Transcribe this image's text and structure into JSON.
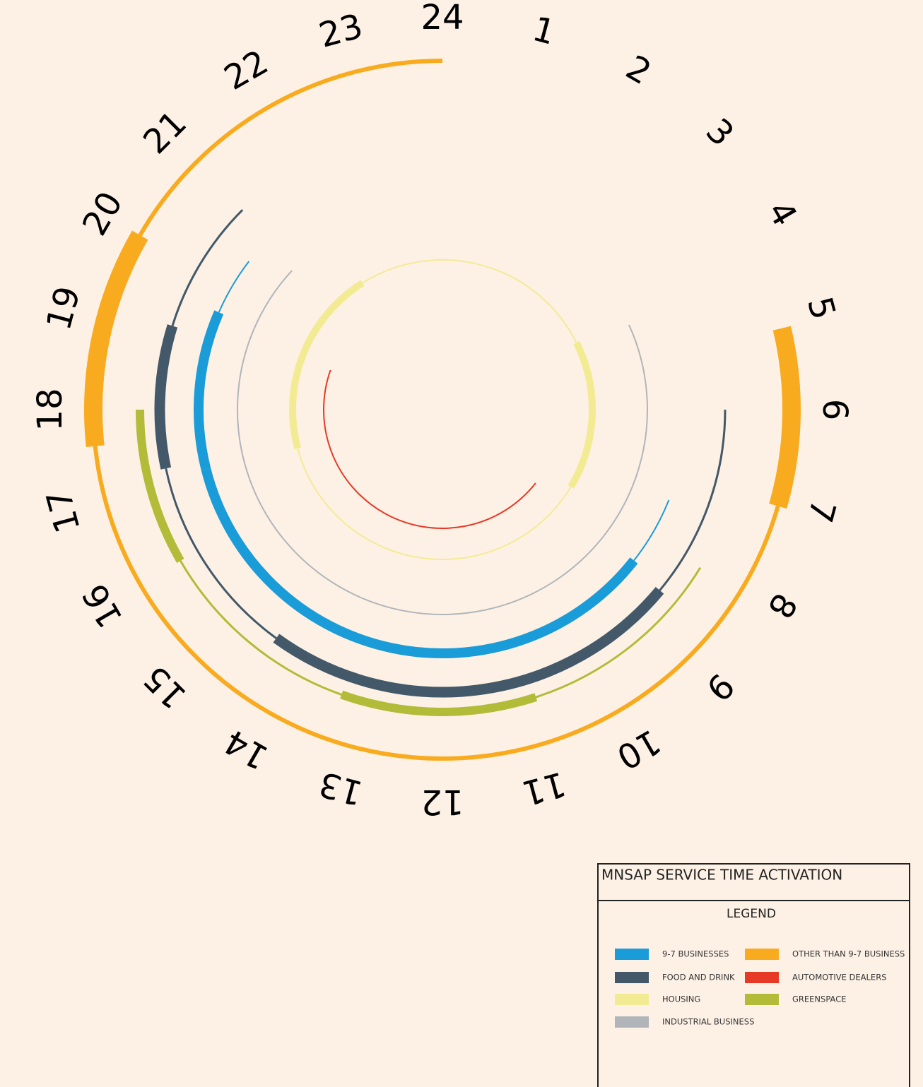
{
  "hours": [
    "1",
    "2",
    "3",
    "4",
    "5",
    "6",
    "7",
    "8",
    "9",
    "10",
    "11",
    "12",
    "13",
    "14",
    "15",
    "16",
    "17",
    "18",
    "19",
    "20",
    "21",
    "22",
    "23",
    "24"
  ],
  "legend": {
    "title": "MNSAP SERVICE TIME ACTIVATION",
    "heading": "LEGEND",
    "items": [
      {
        "label": "9-7 BUSINESSES",
        "color": "#1a9cd8",
        "thin": [
          [
            7.45,
            8.55
          ],
          [
            19.57,
            20.5
          ]
        ],
        "thick": [
          [
            8.55,
            17.06
          ],
          [
            17.06,
            19.57
          ]
        ]
      },
      {
        "label": "OTHER THAN 9-7 BUSINESS",
        "color": "#f9ab1f",
        "thin": [
          [
            7.07,
            17.6
          ],
          [
            20.0,
            24
          ]
        ],
        "thick": [
          [
            5.1,
            7.07
          ],
          [
            17.6,
            20.0
          ]
        ]
      },
      {
        "label": "FOOD AND DRINK",
        "color": "#435868",
        "thin": [
          [
            6.0,
            8.65
          ],
          [
            14.4,
            17.2
          ],
          [
            19.15,
            21.0
          ]
        ],
        "thick": [
          [
            8.65,
            14.4
          ],
          [
            17.2,
            19.15
          ]
        ]
      },
      {
        "label": "AUTOMOTIVE DEALERS",
        "color": "#e63a26",
        "thin": [
          [
            8.55,
            19.3
          ]
        ],
        "thick": []
      },
      {
        "label": "HOUSING",
        "color": "#f3eb94",
        "thin": [
          [
            21.85,
            4.23
          ],
          [
            8.07,
            17.0
          ]
        ],
        "thick": [
          [
            4.23,
            8.07
          ],
          [
            17.0,
            21.85
          ]
        ]
      },
      {
        "label": "GREENSPACE",
        "color": "#b2bc38",
        "thin": [
          [
            8.1,
            10.8
          ],
          [
            13.3,
            16.0
          ]
        ],
        "thick": [
          [
            10.8,
            13.3
          ],
          [
            16.0,
            18.0
          ]
        ]
      },
      {
        "label": "INDUSTRIAL BUSINESS",
        "color": "#b1b5ba",
        "thin": [
          [
            4.37,
            20.85
          ]
        ],
        "thick": []
      }
    ]
  }
}
